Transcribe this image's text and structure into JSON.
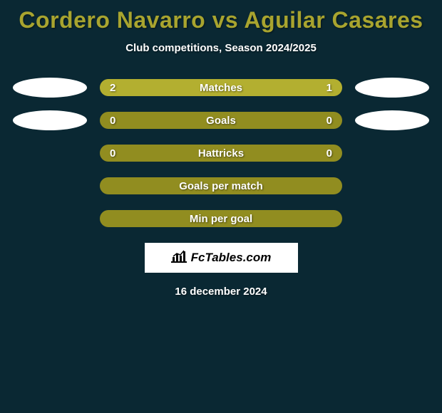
{
  "colors": {
    "background": "#0a2833",
    "text_main": "#a8a42f",
    "text_white": "#ffffff",
    "bar_track": "#918d20",
    "bar_fill": "#b3af30",
    "ellipse": "#ffffff",
    "brand_bg": "#ffffff"
  },
  "title": {
    "player1": "Cordero Navarro",
    "vs": "vs",
    "player2": "Aguilar Casares",
    "fontsize": 32
  },
  "subtitle": {
    "text": "Club competitions, Season 2024/2025",
    "fontsize": 15
  },
  "stats": [
    {
      "label": "Matches",
      "left_value": "2",
      "right_value": "1",
      "left_fill_pct": 67,
      "right_fill_pct": 33,
      "show_left_ellipse": true,
      "show_right_ellipse": true,
      "show_values": true
    },
    {
      "label": "Goals",
      "left_value": "0",
      "right_value": "0",
      "left_fill_pct": 0,
      "right_fill_pct": 0,
      "show_left_ellipse": true,
      "show_right_ellipse": true,
      "show_values": true
    },
    {
      "label": "Hattricks",
      "left_value": "0",
      "right_value": "0",
      "left_fill_pct": 0,
      "right_fill_pct": 0,
      "show_left_ellipse": false,
      "show_right_ellipse": false,
      "show_values": true
    },
    {
      "label": "Goals per match",
      "left_value": "",
      "right_value": "",
      "left_fill_pct": 0,
      "right_fill_pct": 0,
      "show_left_ellipse": false,
      "show_right_ellipse": false,
      "show_values": false
    },
    {
      "label": "Min per goal",
      "left_value": "",
      "right_value": "",
      "left_fill_pct": 0,
      "right_fill_pct": 0,
      "show_left_ellipse": false,
      "show_right_ellipse": false,
      "show_values": false
    }
  ],
  "brand": {
    "text": "FcTables.com"
  },
  "date": {
    "text": "16 december 2024"
  }
}
